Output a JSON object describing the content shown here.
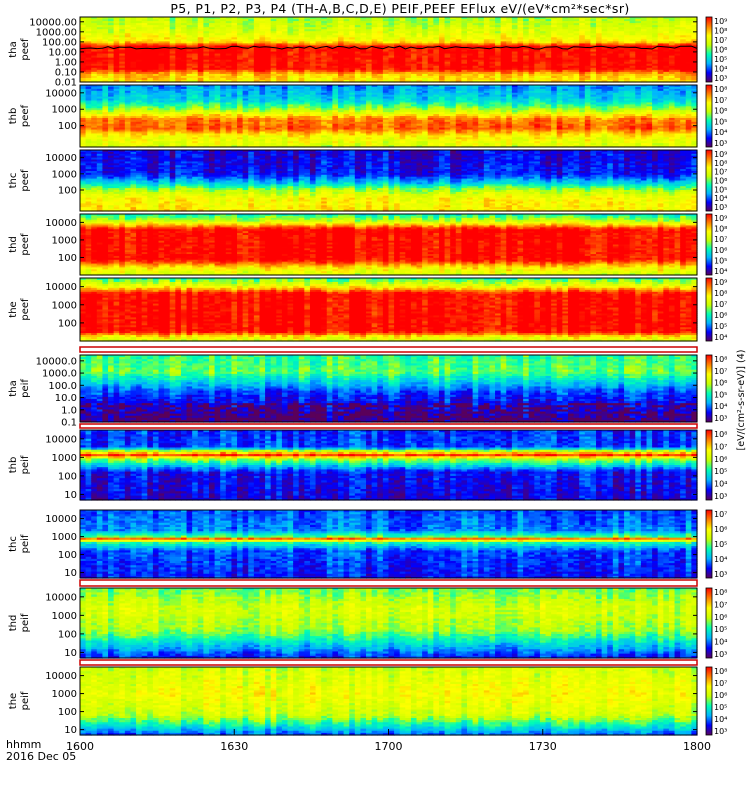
{
  "title": "P5, P1, P2, P3, P4 (TH-A,B,C,D,E) PEIF,PEEF EFlux eV/(eV*cm²*sec*sr)",
  "footer": {
    "label": "hhmm",
    "date": "2016 Dec 05"
  },
  "colorbar_units_label": "[eV/(cm²-s-sr-eV)] (4)",
  "chart_data": {
    "type": "heatmap",
    "title": "P5, P1, P2, P3, P4 (TH-A,B,C,D,E) PEIF,PEEF EFlux eV/(eV*cm²*sec*sr)",
    "x_ticks": [
      "1600",
      "1630",
      "1700",
      "1730",
      "1800"
    ],
    "x_range": [
      "16:00",
      "18:00"
    ],
    "x_label_left": "hhmm",
    "date": "2016 Dec 05",
    "y_scale": "log",
    "colormap": [
      "#5a005a",
      "#0000ff",
      "#00b4ff",
      "#00ffb4",
      "#c8ff00",
      "#ffff00",
      "#ff8000",
      "#ff0000"
    ],
    "panels": [
      {
        "label1": "tha",
        "label2": "peef",
        "yticks": [
          "10000.00",
          "1000.00",
          "100.00",
          "10.00",
          "1.00",
          "0.10",
          "0.01"
        ],
        "ylim": [
          0.01,
          30000
        ],
        "cbticks": [
          "10⁹",
          "10⁸",
          "10⁷",
          "10⁶",
          "10⁵",
          "10⁴",
          "10³"
        ],
        "cbrange": [
          3,
          9
        ],
        "spin_potential": true
      },
      {
        "label1": "thb",
        "label2": "peef",
        "yticks": [
          "10000",
          "1000",
          "100"
        ],
        "ylim": [
          5,
          30000
        ],
        "cbticks": [
          "10⁸",
          "10⁷",
          "10⁶",
          "10⁵",
          "10⁴",
          "10³"
        ],
        "cbrange": [
          3,
          8
        ]
      },
      {
        "label1": "thc",
        "label2": "peef",
        "yticks": [
          "10000",
          "1000",
          "100"
        ],
        "ylim": [
          5,
          30000
        ],
        "cbticks": [
          "10⁹",
          "10⁸",
          "10⁷",
          "10⁶",
          "10⁵",
          "10⁴",
          "10³"
        ],
        "cbrange": [
          3,
          9
        ]
      },
      {
        "label1": "thd",
        "label2": "peef",
        "yticks": [
          "10000",
          "1000",
          "100"
        ],
        "ylim": [
          10,
          30000
        ],
        "cbticks": [
          "10⁹",
          "10⁸",
          "10⁷",
          "10⁶",
          "10⁵",
          "10⁴"
        ],
        "cbrange": [
          4,
          9
        ]
      },
      {
        "label1": "the",
        "label2": "peef",
        "yticks": [
          "10000",
          "1000",
          "100"
        ],
        "ylim": [
          10,
          30000
        ],
        "cbticks": [
          "10⁹",
          "10⁸",
          "10⁷",
          "10⁶",
          "10⁵",
          "10⁴"
        ],
        "cbrange": [
          4,
          9
        ]
      },
      {
        "label1": "tha",
        "label2": "peif",
        "yticks": [
          "10000.0",
          "1000.0",
          "100.0",
          "10.0",
          "1.0",
          "0.1"
        ],
        "ylim": [
          0.1,
          30000
        ],
        "cbticks": [
          "10⁸",
          "10⁷",
          "10⁶",
          "10⁵",
          "10⁴",
          "10³"
        ],
        "cbrange": [
          3,
          8
        ]
      },
      {
        "label1": "thb",
        "label2": "peif",
        "yticks": [
          "10000",
          "1000",
          "100",
          "10"
        ],
        "ylim": [
          5,
          30000
        ],
        "cbticks": [
          "10⁸",
          "10⁷",
          "10⁶",
          "10⁵",
          "10⁴",
          "10³"
        ],
        "cbrange": [
          3,
          8
        ]
      },
      {
        "label1": "thc",
        "label2": "peif",
        "yticks": [
          "10000",
          "1000",
          "100",
          "10"
        ],
        "ylim": [
          5,
          30000
        ],
        "cbticks": [
          "10⁷",
          "10⁶",
          "10⁵",
          "10⁴",
          "10³"
        ],
        "cbrange": [
          3,
          7
        ]
      },
      {
        "label1": "thd",
        "label2": "peif",
        "yticks": [
          "10000",
          "1000",
          "100",
          "10"
        ],
        "ylim": [
          5,
          30000
        ],
        "cbticks": [
          "10⁸",
          "10⁷",
          "10⁶",
          "10⁵",
          "10⁴",
          "10³"
        ],
        "cbrange": [
          3,
          8
        ]
      },
      {
        "label1": "the",
        "label2": "peif",
        "yticks": [
          "10000",
          "1000",
          "100",
          "10"
        ],
        "ylim": [
          5,
          30000
        ],
        "cbticks": [
          "10⁸",
          "10⁷",
          "10⁶",
          "10⁵",
          "10⁴",
          "10³"
        ],
        "cbrange": [
          3,
          8
        ]
      }
    ]
  }
}
